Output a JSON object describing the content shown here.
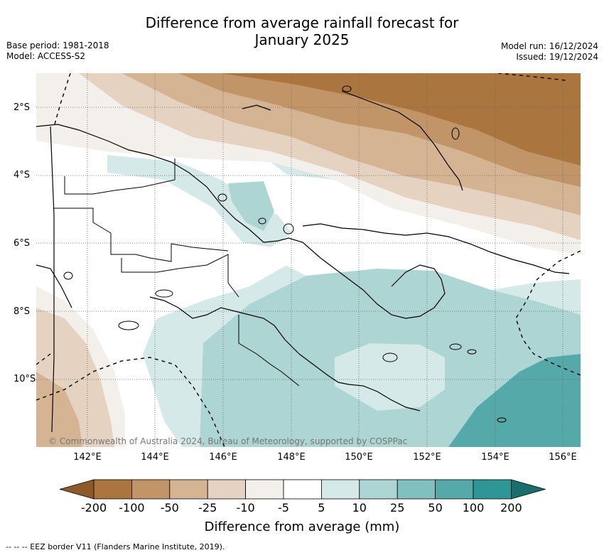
{
  "title_line1": "Difference from average rainfall forecast for",
  "title_line2": "January 2025",
  "base_period": "Base period: 1981-2018",
  "model": "Model: ACCESS-S2",
  "model_run": "Model run: 16/12/2024",
  "issued": "Issued: 19/12/2024",
  "lat_labels": [
    "2°S",
    "4°S",
    "6°S",
    "8°S",
    "10°S"
  ],
  "lon_labels": [
    "142°E",
    "144°E",
    "146°E",
    "148°E",
    "150°E",
    "152°E",
    "154°E",
    "156°E"
  ],
  "copyright": "© Commonwealth of Australia 2024, Bureau of Meteorology, supported by COSPPac",
  "colorbar": {
    "ticks": [
      "-200",
      "-100",
      "-50",
      "-25",
      "-10",
      "-5",
      "5",
      "10",
      "25",
      "50",
      "100",
      "200"
    ],
    "colors": [
      "#8e5a2a",
      "#ab7540",
      "#c29569",
      "#d5b494",
      "#e6d2c1",
      "#f3efea",
      "#ffffff",
      "#d5e9e8",
      "#acd5d4",
      "#82c0c0",
      "#55a9a9",
      "#2e9694",
      "#1a6e6c"
    ],
    "title": "Difference from average (mm)"
  },
  "footnote": "--  --  -- EEZ border V11 (Flanders Marine Institute, 2019)."
}
